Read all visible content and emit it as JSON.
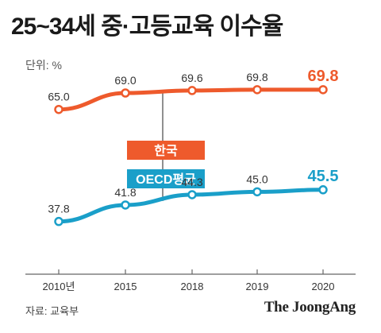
{
  "header": {
    "title": "25~34세 중·고등교육 이수율",
    "unit_label": "단위: %"
  },
  "footer": {
    "source": "자료: 교육부",
    "brand": "The JoongAng"
  },
  "colors": {
    "korea": "#ee5a2c",
    "oecd": "#1a9fc9",
    "axis": "#666666",
    "text": "#1a1a1a"
  },
  "chart_data": {
    "type": "line",
    "title": "25~34세 중·고등교육 이수율",
    "xlabel": "",
    "ylabel": "",
    "categories": [
      "2010년",
      "2015",
      "2018",
      "2019",
      "2020"
    ],
    "x": [
      2010,
      2015,
      2018,
      2019,
      2020
    ],
    "ylim": [
      25,
      80
    ],
    "grid": false,
    "series": [
      {
        "name": "한국",
        "color": "#ee5a2c",
        "values": [
          65.0,
          69.0,
          69.6,
          69.8,
          69.8
        ],
        "labels": [
          "65.0",
          "69.0",
          "69.6",
          "69.8",
          "69.8"
        ]
      },
      {
        "name": "OECD평균",
        "color": "#1a9fc9",
        "values": [
          37.8,
          41.8,
          44.3,
          45.0,
          45.5
        ],
        "labels": [
          "37.8",
          "41.8",
          "44.3",
          "45.0",
          "45.5"
        ]
      }
    ]
  }
}
